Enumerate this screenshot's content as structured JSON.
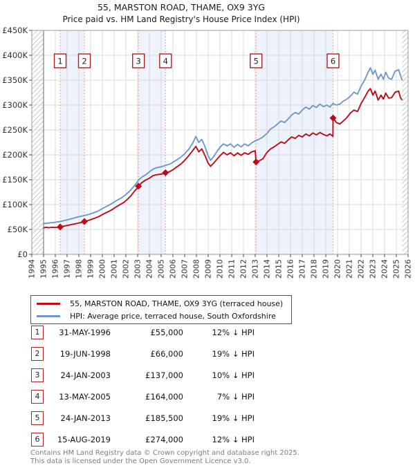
{
  "title": "55, MARSTON ROAD, THAME, OX9 3YG",
  "subtitle": "Price paid vs. HM Land Registry's House Price Index (HPI)",
  "footer": {
    "line1": "Contains HM Land Registry data © Crown copyright and database right 2025.",
    "line2": "This data is licensed under the Open Government Licence v3.0."
  },
  "legend": {
    "items": [
      {
        "label": "55, MARSTON ROAD, THAME, OX9 3YG (terraced house)",
        "color": "#c00a18"
      },
      {
        "label": "HPI: Average price, terraced house, South Oxfordshire",
        "color": "#6d98cb"
      }
    ]
  },
  "table": {
    "rows": [
      {
        "num": "1",
        "date": "31-MAY-1996",
        "price": "£55,000",
        "hpi": "12% ↓ HPI"
      },
      {
        "num": "2",
        "date": "19-JUN-1998",
        "price": "£66,000",
        "hpi": "19% ↓ HPI"
      },
      {
        "num": "3",
        "date": "24-JAN-2003",
        "price": "£137,000",
        "hpi": "10% ↓ HPI"
      },
      {
        "num": "4",
        "date": "13-MAY-2005",
        "price": "£164,000",
        "hpi": "7% ↓ HPI"
      },
      {
        "num": "5",
        "date": "24-JAN-2013",
        "price": "£185,500",
        "hpi": "19% ↓ HPI"
      },
      {
        "num": "6",
        "date": "15-AUG-2019",
        "price": "£274,000",
        "hpi": "12% ↓ HPI"
      }
    ]
  },
  "chart_data": {
    "type": "line",
    "title": "55, MARSTON ROAD, THAME, OX9 3YG",
    "xlabel": "",
    "ylabel": "",
    "xlim": [
      1994,
      2026
    ],
    "ylim": [
      0,
      450000
    ],
    "grid": true,
    "x_tick_labels": [
      "1994",
      "1995",
      "1996",
      "1997",
      "1998",
      "1999",
      "2000",
      "2001",
      "2002",
      "2003",
      "2004",
      "2005",
      "2006",
      "2007",
      "2008",
      "2009",
      "2010",
      "2011",
      "2012",
      "2013",
      "2014",
      "2015",
      "2016",
      "2017",
      "2018",
      "2019",
      "2020",
      "2021",
      "2022",
      "2023",
      "2024",
      "2025",
      "2026"
    ],
    "y_ticks": [
      {
        "value": 0,
        "label": "£0"
      },
      {
        "value": 50000,
        "label": "£50K"
      },
      {
        "value": 100000,
        "label": "£100K"
      },
      {
        "value": 150000,
        "label": "£150K"
      },
      {
        "value": 200000,
        "label": "£200K"
      },
      {
        "value": 250000,
        "label": "£250K"
      },
      {
        "value": 300000,
        "label": "£300K"
      },
      {
        "value": 350000,
        "label": "£350K"
      },
      {
        "value": 400000,
        "label": "£400K"
      },
      {
        "value": 450000,
        "label": "£450K"
      }
    ],
    "data_start_year": 1995.0,
    "data_end_year": 2025.5,
    "ownership_bands": [
      [
        1996.41,
        1998.47
      ],
      [
        2003.07,
        2005.37
      ],
      [
        2013.07,
        2019.62
      ]
    ],
    "sales": [
      {
        "n": "1",
        "year": 1996.41,
        "price_k": 55,
        "date": "31-MAY-1996"
      },
      {
        "n": "2",
        "year": 1998.47,
        "price_k": 66,
        "date": "19-JUN-1998"
      },
      {
        "n": "3",
        "year": 2003.07,
        "price_k": 137,
        "date": "24-JAN-2003"
      },
      {
        "n": "4",
        "year": 2005.37,
        "price_k": 164,
        "date": "13-MAY-2005"
      },
      {
        "n": "5",
        "year": 2013.07,
        "price_k": 185.5,
        "date": "24-JAN-2013"
      },
      {
        "n": "6",
        "year": 2019.62,
        "price_k": 274,
        "date": "15-AUG-2019"
      }
    ],
    "series": [
      {
        "name": "55, MARSTON ROAD, THAME, OX9 3YG (terraced house)",
        "color": "#c00a18",
        "unit": "GBP_thousands",
        "points": [
          [
            1995.0,
            53
          ],
          [
            1995.2,
            54.5
          ],
          [
            1995.45,
            53.5
          ],
          [
            1995.7,
            54.5
          ],
          [
            1996.0,
            54
          ],
          [
            1996.2,
            54.5
          ],
          [
            1996.41,
            55
          ],
          [
            1996.7,
            56.5
          ],
          [
            1997.0,
            58
          ],
          [
            1997.3,
            59.5
          ],
          [
            1997.6,
            61
          ],
          [
            1997.9,
            62.5
          ],
          [
            1998.2,
            64
          ],
          [
            1998.47,
            66
          ],
          [
            1998.8,
            68
          ],
          [
            1999.1,
            70.5
          ],
          [
            1999.4,
            73
          ],
          [
            1999.7,
            76
          ],
          [
            2000.0,
            80
          ],
          [
            2000.3,
            83.5
          ],
          [
            2000.6,
            87
          ],
          [
            2000.9,
            91
          ],
          [
            2001.2,
            96
          ],
          [
            2001.5,
            100
          ],
          [
            2001.8,
            104
          ],
          [
            2002.1,
            110
          ],
          [
            2002.4,
            117
          ],
          [
            2002.7,
            126
          ],
          [
            2003.0,
            134
          ],
          [
            2003.07,
            137
          ],
          [
            2003.35,
            144
          ],
          [
            2003.65,
            149
          ],
          [
            2004.0,
            153
          ],
          [
            2004.3,
            158
          ],
          [
            2004.6,
            160
          ],
          [
            2004.9,
            161
          ],
          [
            2005.15,
            162
          ],
          [
            2005.37,
            164
          ],
          [
            2005.7,
            166
          ],
          [
            2006.0,
            170
          ],
          [
            2006.35,
            176
          ],
          [
            2006.7,
            182
          ],
          [
            2007.0,
            189
          ],
          [
            2007.3,
            197
          ],
          [
            2007.6,
            206
          ],
          [
            2007.95,
            217
          ],
          [
            2008.2,
            206
          ],
          [
            2008.45,
            212
          ],
          [
            2008.7,
            200
          ],
          [
            2009.0,
            183
          ],
          [
            2009.2,
            177
          ],
          [
            2009.45,
            183
          ],
          [
            2009.7,
            190
          ],
          [
            2010.0,
            198
          ],
          [
            2010.3,
            205
          ],
          [
            2010.6,
            200
          ],
          [
            2010.9,
            204
          ],
          [
            2011.2,
            198
          ],
          [
            2011.5,
            204
          ],
          [
            2011.8,
            199
          ],
          [
            2012.1,
            204
          ],
          [
            2012.4,
            201
          ],
          [
            2012.7,
            206
          ],
          [
            2013.0,
            208
          ],
          [
            2013.07,
            185.5
          ],
          [
            2013.35,
            188
          ],
          [
            2013.65,
            192
          ],
          [
            2014.0,
            205
          ],
          [
            2014.3,
            212
          ],
          [
            2014.6,
            216
          ],
          [
            2014.9,
            221
          ],
          [
            2015.2,
            226
          ],
          [
            2015.5,
            223
          ],
          [
            2015.8,
            230
          ],
          [
            2016.1,
            236
          ],
          [
            2016.4,
            233
          ],
          [
            2016.7,
            239
          ],
          [
            2017.0,
            236
          ],
          [
            2017.3,
            242
          ],
          [
            2017.6,
            238
          ],
          [
            2017.9,
            244
          ],
          [
            2018.2,
            240
          ],
          [
            2018.5,
            245
          ],
          [
            2018.8,
            241
          ],
          [
            2019.1,
            238
          ],
          [
            2019.35,
            242
          ],
          [
            2019.61,
            237
          ],
          [
            2019.62,
            274
          ],
          [
            2019.9,
            265
          ],
          [
            2020.2,
            262
          ],
          [
            2020.5,
            268
          ],
          [
            2020.8,
            275
          ],
          [
            2021.1,
            284
          ],
          [
            2021.4,
            290
          ],
          [
            2021.7,
            287
          ],
          [
            2022.0,
            303
          ],
          [
            2022.3,
            315
          ],
          [
            2022.6,
            328
          ],
          [
            2022.8,
            333
          ],
          [
            2023.0,
            320
          ],
          [
            2023.2,
            328
          ],
          [
            2023.45,
            310
          ],
          [
            2023.7,
            320
          ],
          [
            2023.9,
            312
          ],
          [
            2024.1,
            324
          ],
          [
            2024.35,
            314
          ],
          [
            2024.6,
            315
          ],
          [
            2024.9,
            326
          ],
          [
            2025.2,
            328
          ],
          [
            2025.35,
            315
          ],
          [
            2025.5,
            310
          ]
        ]
      },
      {
        "name": "HPI: Average price, terraced house, South Oxfordshire",
        "color": "#6d98cb",
        "unit": "GBP_thousands",
        "points": [
          [
            1995.0,
            62
          ],
          [
            1995.3,
            62.5
          ],
          [
            1995.6,
            63.5
          ],
          [
            1996.0,
            64.5
          ],
          [
            1996.4,
            66
          ],
          [
            1996.8,
            68
          ],
          [
            1997.2,
            70.5
          ],
          [
            1997.6,
            73
          ],
          [
            1998.0,
            75.5
          ],
          [
            1998.4,
            77.5
          ],
          [
            1998.8,
            80
          ],
          [
            1999.2,
            83
          ],
          [
            1999.6,
            86.5
          ],
          [
            2000.0,
            92
          ],
          [
            2000.4,
            97
          ],
          [
            2000.8,
            102
          ],
          [
            2001.2,
            108
          ],
          [
            2001.6,
            113
          ],
          [
            2002.0,
            120
          ],
          [
            2002.4,
            129
          ],
          [
            2002.8,
            140
          ],
          [
            2003.1,
            150
          ],
          [
            2003.4,
            156
          ],
          [
            2003.7,
            160
          ],
          [
            2004.0,
            166
          ],
          [
            2004.3,
            171
          ],
          [
            2004.6,
            174
          ],
          [
            2005.0,
            176
          ],
          [
            2005.4,
            179
          ],
          [
            2005.8,
            182
          ],
          [
            2006.2,
            188
          ],
          [
            2006.6,
            194
          ],
          [
            2007.0,
            202
          ],
          [
            2007.4,
            213
          ],
          [
            2007.7,
            224
          ],
          [
            2007.95,
            237
          ],
          [
            2008.2,
            225
          ],
          [
            2008.45,
            231
          ],
          [
            2008.7,
            218
          ],
          [
            2009.0,
            198
          ],
          [
            2009.2,
            189
          ],
          [
            2009.45,
            196
          ],
          [
            2009.7,
            205
          ],
          [
            2010.0,
            215
          ],
          [
            2010.3,
            222
          ],
          [
            2010.6,
            218
          ],
          [
            2010.9,
            222
          ],
          [
            2011.2,
            215
          ],
          [
            2011.5,
            221
          ],
          [
            2011.8,
            216
          ],
          [
            2012.1,
            222
          ],
          [
            2012.4,
            218
          ],
          [
            2012.7,
            224
          ],
          [
            2013.0,
            228
          ],
          [
            2013.3,
            231
          ],
          [
            2013.6,
            235
          ],
          [
            2014.0,
            243
          ],
          [
            2014.3,
            252
          ],
          [
            2014.6,
            256
          ],
          [
            2014.9,
            262
          ],
          [
            2015.2,
            268
          ],
          [
            2015.5,
            265
          ],
          [
            2015.8,
            272
          ],
          [
            2016.1,
            280
          ],
          [
            2016.4,
            285
          ],
          [
            2016.7,
            282
          ],
          [
            2017.0,
            290
          ],
          [
            2017.3,
            296
          ],
          [
            2017.6,
            292
          ],
          [
            2017.9,
            299
          ],
          [
            2018.2,
            295
          ],
          [
            2018.5,
            302
          ],
          [
            2018.8,
            297
          ],
          [
            2019.1,
            300
          ],
          [
            2019.35,
            296
          ],
          [
            2019.6,
            303
          ],
          [
            2019.9,
            300
          ],
          [
            2020.2,
            302
          ],
          [
            2020.5,
            308
          ],
          [
            2020.8,
            312
          ],
          [
            2021.1,
            318
          ],
          [
            2021.4,
            326
          ],
          [
            2021.7,
            322
          ],
          [
            2022.0,
            338
          ],
          [
            2022.3,
            350
          ],
          [
            2022.6,
            366
          ],
          [
            2022.8,
            375
          ],
          [
            2023.0,
            362
          ],
          [
            2023.2,
            370
          ],
          [
            2023.45,
            352
          ],
          [
            2023.7,
            362
          ],
          [
            2023.9,
            352
          ],
          [
            2024.1,
            366
          ],
          [
            2024.35,
            354
          ],
          [
            2024.6,
            352
          ],
          [
            2024.9,
            368
          ],
          [
            2025.2,
            371
          ],
          [
            2025.35,
            360
          ],
          [
            2025.5,
            350
          ]
        ]
      }
    ],
    "colors": {
      "property_line": "#c00a18",
      "hpi_line": "#6d98cb",
      "sale_dotted_line": "#ef8f8f",
      "ownership_band": "#eef2fa",
      "gridline": "#d8d8d8",
      "plot_border": "#9a9a9a",
      "hatch": "#c9c9c9",
      "number_box_border": "#b02020"
    },
    "legend_position": "below"
  }
}
